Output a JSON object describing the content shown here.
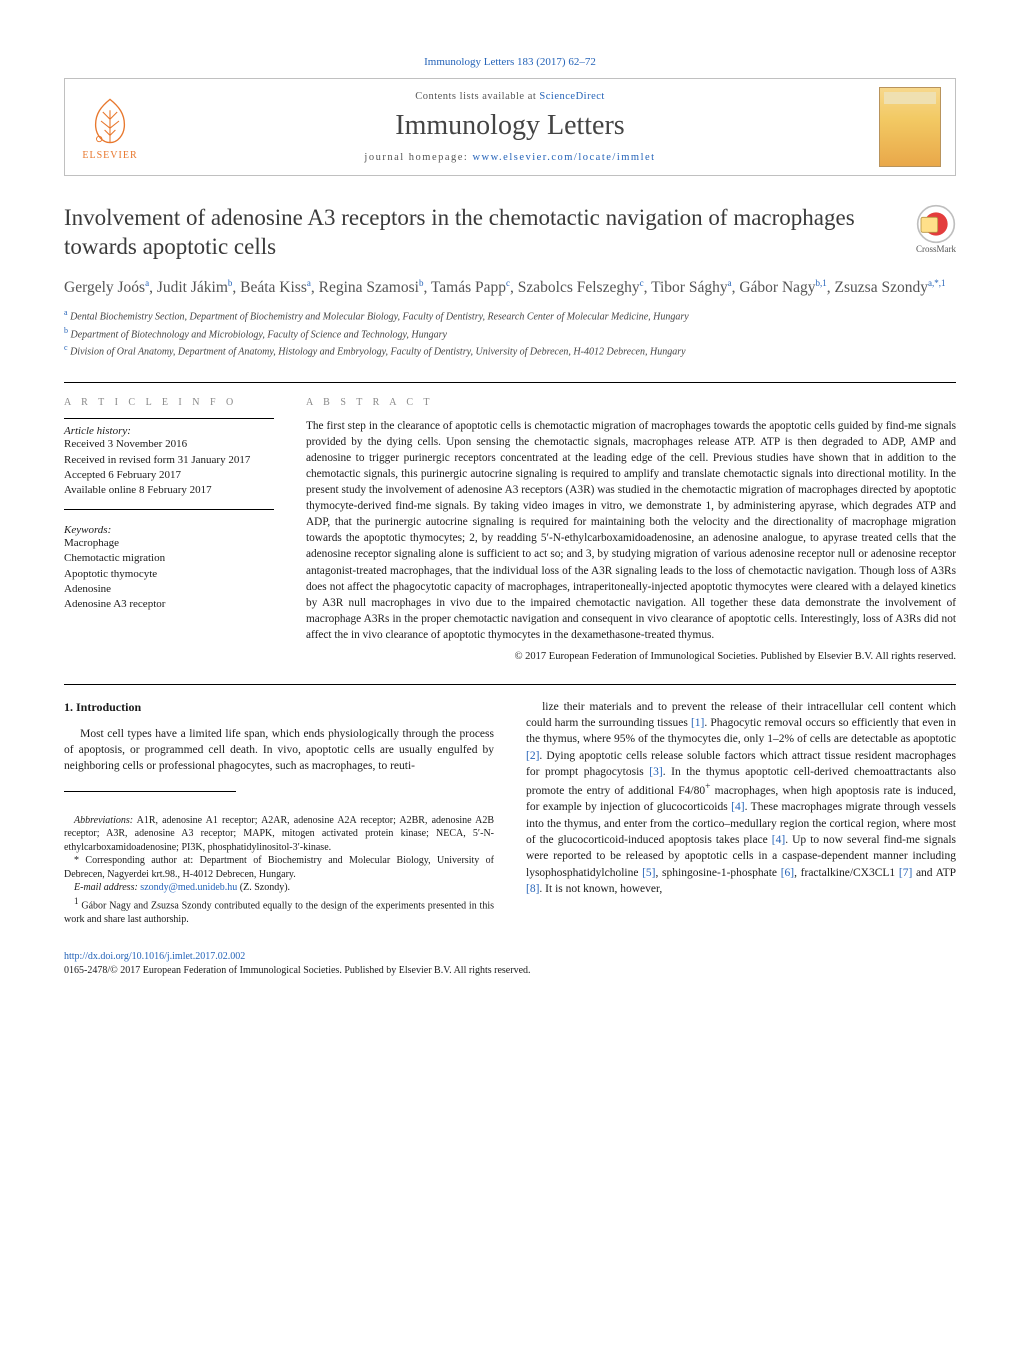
{
  "colors": {
    "link": "#2563b8",
    "text": "#1a1a1a",
    "muted": "#888888",
    "elsevier": "#e8772c",
    "border": "#c0c0c0",
    "rule": "#000000",
    "background": "#ffffff"
  },
  "typography": {
    "base_family": "Georgia, 'Times New Roman', serif",
    "title_size_pt": 17,
    "journal_size_pt": 21,
    "body_size_pt": 9,
    "abstract_size_pt": 8.5
  },
  "header": {
    "citation": "Immunology Letters 183 (2017) 62–72",
    "contents_line_prefix": "Contents lists available at ",
    "contents_link_text": "ScienceDirect",
    "journal_name": "Immunology Letters",
    "homepage_prefix": "journal homepage: ",
    "homepage_url": "www.elsevier.com/locate/immlet",
    "publisher_logo_text": "ELSEVIER",
    "crossmark_label": "CrossMark"
  },
  "article": {
    "title": "Involvement of adenosine A3 receptors in the chemotactic navigation of macrophages towards apoptotic cells",
    "authors_html": "Gergely Joós<sup>a</sup>, Judit Jákim<sup>b</sup>, Beáta Kiss<sup>a</sup>, Regina Szamosi<sup>b</sup>, Tamás Papp<sup>c</sup>, Szabolcs Felszeghy<sup>c</sup>, Tibor Sághy<sup>a</sup>, Gábor Nagy<sup>b,1</sup>, Zsuzsa Szondy<sup>a,*,1</sup>",
    "affiliations": [
      {
        "sup": "a",
        "text": "Dental Biochemistry Section, Department of Biochemistry and Molecular Biology, Faculty of Dentistry, Research Center of Molecular Medicine, Hungary"
      },
      {
        "sup": "b",
        "text": "Department of Biotechnology and Microbiology, Faculty of Science and Technology, Hungary"
      },
      {
        "sup": "c",
        "text": "Division of Oral Anatomy, Department of Anatomy, Histology and Embryology, Faculty of Dentistry, University of Debrecen, H-4012 Debrecen, Hungary"
      }
    ]
  },
  "article_info": {
    "heading": "a r t i c l e   i n f o",
    "history_label": "Article history:",
    "history": [
      "Received 3 November 2016",
      "Received in revised form 31 January 2017",
      "Accepted 6 February 2017",
      "Available online 8 February 2017"
    ],
    "keywords_label": "Keywords:",
    "keywords": [
      "Macrophage",
      "Chemotactic migration",
      "Apoptotic thymocyte",
      "Adenosine",
      "Adenosine A3 receptor"
    ]
  },
  "abstract": {
    "heading": "a b s t r a c t",
    "text": "The first step in the clearance of apoptotic cells is chemotactic migration of macrophages towards the apoptotic cells guided by find-me signals provided by the dying cells. Upon sensing the chemotactic signals, macrophages release ATP. ATP is then degraded to ADP, AMP and adenosine to trigger purinergic receptors concentrated at the leading edge of the cell. Previous studies have shown that in addition to the chemotactic signals, this purinergic autocrine signaling is required to amplify and translate chemotactic signals into directional motility. In the present study the involvement of adenosine A3 receptors (A3R) was studied in the chemotactic migration of macrophages directed by apoptotic thymocyte-derived find-me signals. By taking video images in vitro, we demonstrate 1, by administering apyrase, which degrades ATP and ADP, that the purinergic autocrine signaling is required for maintaining both the velocity and the directionality of macrophage migration towards the apoptotic thymocytes; 2, by readding 5′-N-ethylcarboxamidoadenosine, an adenosine analogue, to apyrase treated cells that the adenosine receptor signaling alone is sufficient to act so; and 3, by studying migration of various adenosine receptor null or adenosine receptor antagonist-treated macrophages, that the individual loss of the A3R signaling leads to the loss of chemotactic navigation. Though loss of A3Rs does not affect the phagocytotic capacity of macrophages, intraperitoneally-injected apoptotic thymocytes were cleared with a delayed kinetics by A3R null macrophages in vivo due to the impaired chemotactic navigation. All together these data demonstrate the involvement of macrophage A3Rs in the proper chemotactic navigation and consequent in vivo clearance of apoptotic cells. Interestingly, loss of A3Rs did not affect the in vivo clearance of apoptotic thymocytes in the dexamethasone-treated thymus.",
    "copyright": "© 2017 European Federation of Immunological Societies. Published by Elsevier B.V. All rights reserved."
  },
  "body": {
    "section_heading": "1. Introduction",
    "col1_para": "Most cell types have a limited life span, which ends physiologically through the process of apoptosis, or programmed cell death. In vivo, apoptotic cells are usually engulfed by neighboring cells or professional phagocytes, such as macrophages, to reuti-",
    "col2_para": "lize their materials and to prevent the release of their intracellular cell content which could harm the surrounding tissues [1]. Phagocytic removal occurs so efficiently that even in the thymus, where 95% of the thymocytes die, only 1–2% of cells are detectable as apoptotic [2]. Dying apoptotic cells release soluble factors which attract tissue resident macrophages for prompt phagocytosis [3]. In the thymus apoptotic cell-derived chemoattractants also promote the entry of additional F4/80+ macrophages, when high apoptosis rate is induced, for example by injection of glucocorticoids [4]. These macrophages migrate through vessels into the thymus, and enter from the cortico–medullary region the cortical region, where most of the glucocorticoid-induced apoptosis takes place [4]. Up to now several find-me signals were reported to be released by apoptotic cells in a caspase-dependent manner including lysophosphatidylcholine [5], sphingosine-1-phosphate [6], fractalkine/CX3CL1 [7] and ATP [8]. It is not known, however,",
    "ref_nums": [
      "[1]",
      "[2]",
      "[3]",
      "[4]",
      "[5]",
      "[6]",
      "[7]",
      "[8]"
    ]
  },
  "footnotes": {
    "abbrev_label": "Abbreviations:",
    "abbrev_text": "A1R, adenosine A1 receptor; A2AR, adenosine A2A receptor; A2BR, adenosine A2B receptor; A3R, adenosine A3 receptor; MAPK, mitogen activated protein kinase; NECA, 5′-N-ethylcarboxamidoadenosine; PI3K, phosphatidylinositol-3′-kinase.",
    "corresponding": "* Corresponding author at: Department of Biochemistry and Molecular Biology, University of Debrecen, Nagyerdei krt.98., H-4012 Debrecen, Hungary.",
    "email_label": "E-mail address:",
    "email": "szondy@med.unideb.hu",
    "email_suffix": "(Z. Szondy).",
    "contrib": "1 Gábor Nagy and Zsuzsa Szondy contributed equally to the design of the experiments presented in this work and share last authorship."
  },
  "doi": {
    "url_text": "http://dx.doi.org/10.1016/j.imlet.2017.02.002",
    "issn_line": "0165-2478/© 2017 European Federation of Immunological Societies. Published by Elsevier B.V. All rights reserved."
  }
}
